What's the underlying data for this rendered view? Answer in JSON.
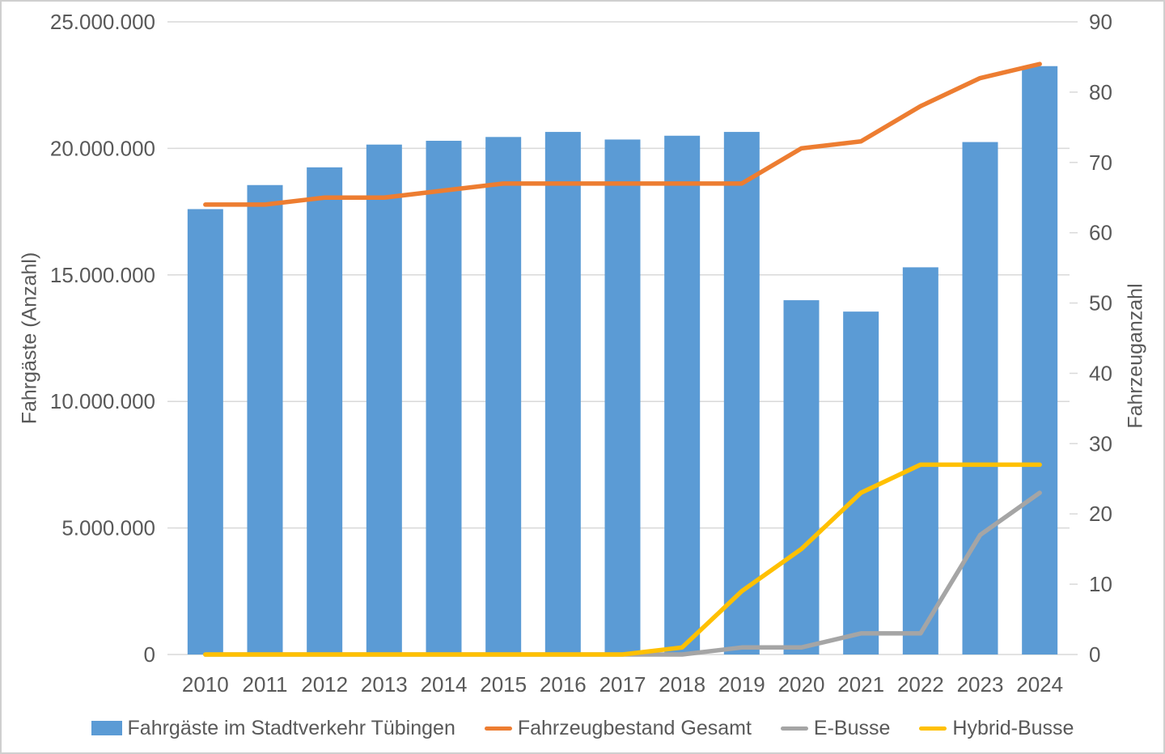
{
  "chart_data": {
    "type": "bar",
    "subtype": "combo-bar-line",
    "title": "",
    "categories": [
      "2010",
      "2011",
      "2012",
      "2013",
      "2014",
      "2015",
      "2016",
      "2017",
      "2018",
      "2019",
      "2020",
      "2021",
      "2022",
      "2023",
      "2024"
    ],
    "series": [
      {
        "name": "Fahrgäste im Stadtverkehr Tübingen",
        "type": "bar",
        "axis": "left",
        "color": "#5B9BD5",
        "values": [
          17600000,
          18550000,
          19250000,
          20150000,
          20300000,
          20450000,
          20650000,
          20350000,
          20500000,
          20650000,
          14000000,
          13550000,
          15300000,
          20250000,
          23250000
        ]
      },
      {
        "name": "Fahrzeugbestand Gesamt",
        "type": "line",
        "axis": "right",
        "color": "#ED7D31",
        "values": [
          64,
          64,
          65,
          65,
          66,
          67,
          67,
          67,
          67,
          67,
          72,
          73,
          78,
          82,
          84
        ]
      },
      {
        "name": "E-Busse",
        "type": "line",
        "axis": "right",
        "color": "#A5A5A5",
        "values": [
          0,
          0,
          0,
          0,
          0,
          0,
          0,
          0,
          0,
          1,
          1,
          3,
          3,
          17,
          23
        ]
      },
      {
        "name": "Hybrid-Busse",
        "type": "line",
        "axis": "right",
        "color": "#FFC000",
        "values": [
          0,
          0,
          0,
          0,
          0,
          0,
          0,
          0,
          1,
          9,
          15,
          23,
          27,
          27,
          27
        ]
      }
    ],
    "left_axis": {
      "label": "Fahrgäste (Anzahl)",
      "min": 0,
      "max": 25000000,
      "step": 5000000,
      "tick_labels": [
        "0",
        "5.000.000",
        "10.000.000",
        "15.000.000",
        "20.000.000",
        "25.000.000"
      ]
    },
    "right_axis": {
      "label": "Fahrzeuganzahl",
      "min": 0,
      "max": 90,
      "step": 10,
      "tick_labels": [
        "0",
        "10",
        "20",
        "30",
        "40",
        "50",
        "60",
        "70",
        "80",
        "90"
      ]
    },
    "grid": true,
    "gridline_color": "#D9D9D9",
    "axis_text_color": "#595959",
    "legend_position": "bottom"
  }
}
